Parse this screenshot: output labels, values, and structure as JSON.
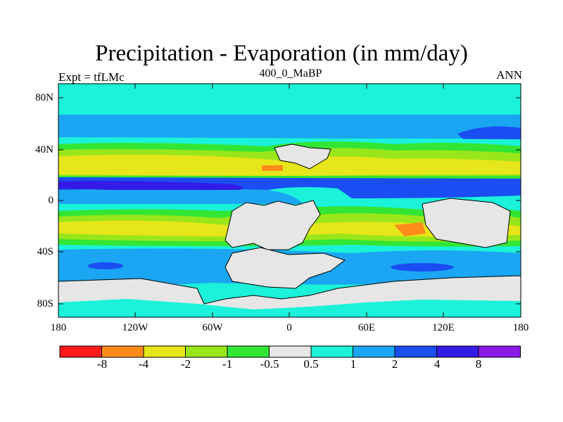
{
  "title": "Precipitation - Evaporation (in mm/day)",
  "subtitle_left": "Expt = tfLMc",
  "subtitle_center": "400_0_MaBP",
  "subtitle_right": "ANN",
  "y_ticks": [
    "80N",
    "40N",
    "0",
    "40S",
    "80S"
  ],
  "x_ticks": [
    "180",
    "120W",
    "60W",
    "0",
    "60E",
    "120E",
    "180"
  ],
  "colorbar": {
    "colors": [
      "#ff1a1a",
      "#ff8c1a",
      "#e6e61a",
      "#99e61a",
      "#33e633",
      "#e6e6e6",
      "#1af2d9",
      "#1aa6f2",
      "#1a4df2",
      "#331ae6",
      "#8c1ae6"
    ],
    "labels": [
      "-8",
      "-4",
      "-2",
      "-1",
      "-0.5",
      "0.5",
      "1",
      "2",
      "4",
      "8"
    ]
  },
  "colors": {
    "ocean_base": "#1af2d9",
    "mid_blue": "#1aa6f2",
    "deep_blue": "#1a4df2",
    "navy": "#331ae6",
    "yellow": "#e6e61a",
    "lime": "#99e61a",
    "green": "#33e633",
    "orange": "#ff8c1a",
    "land_grey": "#e6e6e6"
  }
}
